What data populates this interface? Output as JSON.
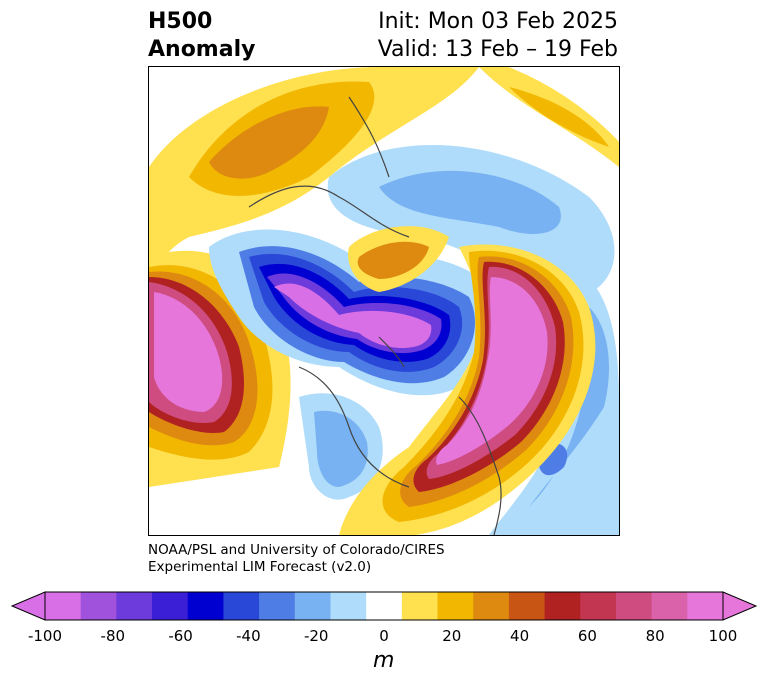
{
  "header": {
    "field_line1": "H500",
    "field_line2": "Anomaly",
    "init_text": "Init: Mon 03 Feb 2025",
    "valid_text": "Valid: 13 Feb – 19 Feb"
  },
  "credit": {
    "line1": "NOAA/PSL and University of Colorado/CIRES",
    "line2": "Experimental LIM Forecast (v2.0)"
  },
  "colorbar": {
    "unit": "m",
    "ticks": [
      "-100",
      "-80",
      "-60",
      "-40",
      "-20",
      "0",
      "20",
      "40",
      "60",
      "80",
      "100"
    ],
    "levels": [
      -100,
      -90,
      -80,
      -70,
      -60,
      -50,
      -40,
      -30,
      -20,
      -10,
      10,
      20,
      30,
      40,
      50,
      60,
      70,
      80,
      90,
      100
    ],
    "colors": [
      "#d86fe6",
      "#a052dc",
      "#6d3adc",
      "#3a1fd6",
      "#0000d0",
      "#2a48d8",
      "#4f7de6",
      "#78b2f2",
      "#aedcfa",
      "#ffffff",
      "#ffe04f",
      "#f2b700",
      "#de8a10",
      "#c85514",
      "#b02222",
      "#c23652",
      "#ce4c80",
      "#da62aa",
      "#e676da"
    ],
    "extend_min_color": "#d86fe6",
    "extend_max_color": "#e676da"
  },
  "map": {
    "projection": "north-polar-stereographic",
    "features": [
      {
        "name": "negative-anomaly-north-atlantic-arctic",
        "min_m": -100
      },
      {
        "name": "positive-anomaly-north-pacific",
        "max_m": 100
      },
      {
        "name": "positive-anomaly-eastern-north-america",
        "max_m": 100
      },
      {
        "name": "positive-anomaly-western-europe",
        "max_m": 50
      }
    ]
  }
}
